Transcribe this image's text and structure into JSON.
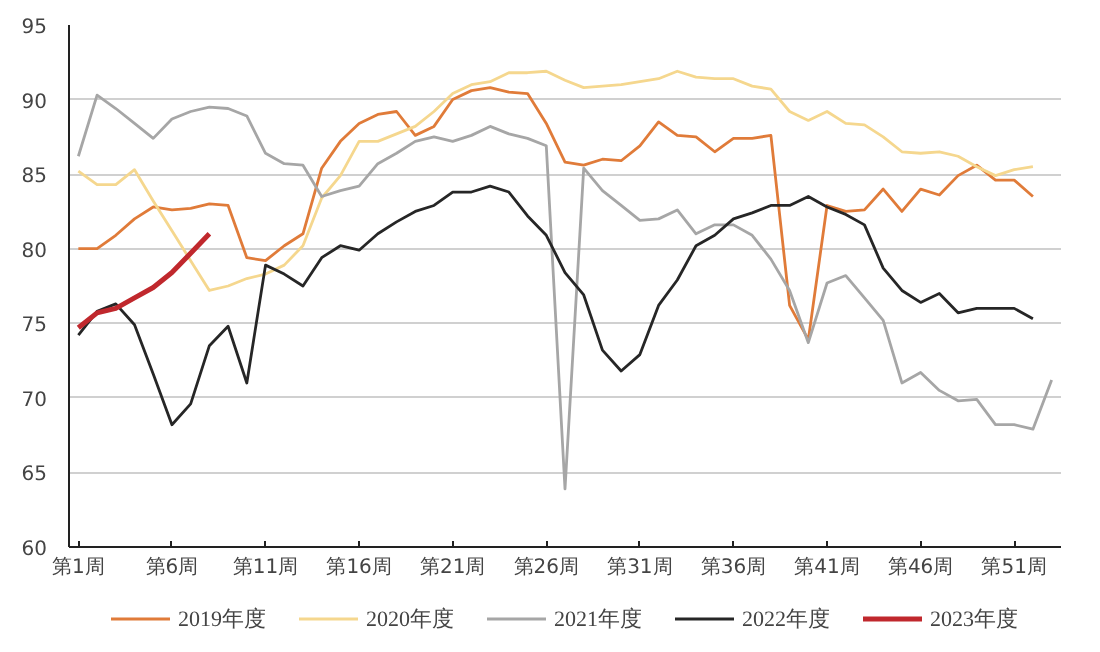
{
  "chart_data": {
    "type": "line",
    "categories": [
      "第1周",
      null,
      null,
      null,
      null,
      "第6周",
      null,
      null,
      null,
      null,
      "第11周",
      null,
      null,
      null,
      null,
      "第16周",
      null,
      null,
      null,
      null,
      "第21周",
      null,
      null,
      null,
      null,
      "第26周",
      null,
      null,
      null,
      null,
      "第31周",
      null,
      null,
      null,
      null,
      "第36周",
      null,
      null,
      null,
      null,
      "第41周",
      null,
      null,
      null,
      null,
      "第46周",
      null,
      null,
      null,
      null,
      "第51周",
      null,
      null
    ],
    "series": [
      {
        "name": "2019年度",
        "color": "#e07b39",
        "values": [
          80.0,
          80.0,
          80.9,
          82.0,
          82.8,
          82.6,
          82.7,
          83.0,
          82.9,
          79.4,
          79.2,
          80.2,
          81.0,
          85.4,
          87.2,
          88.4,
          89.0,
          89.2,
          87.6,
          88.2,
          90.0,
          90.6,
          90.8,
          90.5,
          90.4,
          88.4,
          85.8,
          85.6,
          86.0,
          85.9,
          86.9,
          88.5,
          87.6,
          87.5,
          86.5,
          87.4,
          87.4,
          87.6,
          76.2,
          73.9,
          82.9,
          82.5,
          82.6,
          84.0,
          82.5,
          84.0,
          83.6,
          84.9,
          85.6,
          84.6,
          84.6,
          83.5,
          null
        ]
      },
      {
        "name": "2020年度",
        "color": "#f5d78e",
        "values": [
          85.2,
          84.3,
          84.3,
          85.3,
          83.2,
          81.2,
          79.2,
          77.2,
          77.5,
          78.0,
          78.3,
          78.9,
          80.2,
          83.4,
          84.9,
          87.2,
          87.2,
          87.7,
          88.2,
          89.2,
          90.4,
          91.0,
          91.2,
          91.8,
          91.8,
          91.9,
          91.3,
          90.8,
          90.9,
          91.0,
          91.2,
          91.4,
          91.9,
          91.5,
          91.4,
          91.4,
          90.9,
          90.7,
          89.2,
          88.6,
          89.2,
          88.4,
          88.3,
          87.5,
          86.5,
          86.4,
          86.5,
          86.2,
          85.5,
          84.9,
          85.3,
          85.5,
          null
        ]
      },
      {
        "name": "2021年度",
        "color": "#a6a6a6",
        "values": [
          86.2,
          90.3,
          89.4,
          88.4,
          87.4,
          88.7,
          89.2,
          89.5,
          89.4,
          88.9,
          86.4,
          85.7,
          85.6,
          83.5,
          83.9,
          84.2,
          85.7,
          86.4,
          87.2,
          87.5,
          87.2,
          87.6,
          88.2,
          87.7,
          87.4,
          86.9,
          63.9,
          85.4,
          83.9,
          82.9,
          81.9,
          82.0,
          82.6,
          81.0,
          81.6,
          81.6,
          80.9,
          79.3,
          77.2,
          73.7,
          77.7,
          78.2,
          76.7,
          75.2,
          71.0,
          71.7,
          70.5,
          69.8,
          69.9,
          68.2,
          68.2,
          67.9,
          71.2
        ]
      },
      {
        "name": "2022年度",
        "color": "#262626",
        "values": [
          74.2,
          75.8,
          76.3,
          74.9,
          71.6,
          68.2,
          69.6,
          73.5,
          74.8,
          71.0,
          78.9,
          78.3,
          77.5,
          79.4,
          80.2,
          79.9,
          81.0,
          81.8,
          82.5,
          82.9,
          83.8,
          83.8,
          84.2,
          83.8,
          82.2,
          80.9,
          78.4,
          76.9,
          73.2,
          71.8,
          72.9,
          76.2,
          77.9,
          80.2,
          80.9,
          82.0,
          82.4,
          82.9,
          82.9,
          83.5,
          82.8,
          82.3,
          81.6,
          78.7,
          77.2,
          76.4,
          77.0,
          75.7,
          76.0,
          76.0,
          76.0,
          75.3,
          null
        ]
      },
      {
        "name": "2023年度",
        "color": "#c0282d",
        "values": [
          74.7,
          75.7,
          76.0,
          76.7,
          77.4,
          78.4,
          79.7,
          81.0,
          null,
          null,
          null,
          null,
          null,
          null,
          null,
          null,
          null,
          null,
          null,
          null,
          null,
          null,
          null,
          null,
          null,
          null,
          null,
          null,
          null,
          null,
          null,
          null,
          null,
          null,
          null,
          null,
          null,
          null,
          null,
          null,
          null,
          null,
          null,
          null,
          null,
          null,
          null,
          null,
          null,
          null,
          null,
          null,
          null
        ]
      }
    ],
    "ylim": [
      60,
      95
    ],
    "yticks": [
      60,
      65,
      70,
      75,
      80,
      85,
      90,
      95
    ],
    "grid": "y",
    "legend": "bottom",
    "marker": "none",
    "line_style": "solid"
  }
}
